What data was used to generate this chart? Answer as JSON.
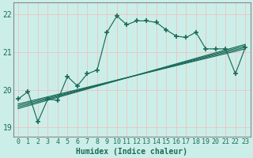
{
  "xlabel": "Humidex (Indice chaleur)",
  "ylabel": "",
  "background_color": "#cceee8",
  "grid_color": "#e8c8c8",
  "line_color": "#1a6b5a",
  "spine_color": "#888888",
  "xlim": [
    -0.5,
    23.5
  ],
  "ylim": [
    18.75,
    22.3
  ],
  "yticks": [
    19,
    20,
    21,
    22
  ],
  "xticks": [
    0,
    1,
    2,
    3,
    4,
    5,
    6,
    7,
    8,
    9,
    10,
    11,
    12,
    13,
    14,
    15,
    16,
    17,
    18,
    19,
    20,
    21,
    22,
    23
  ],
  "jagged_x": [
    0,
    1,
    2,
    3,
    4,
    5,
    6,
    7,
    8,
    9,
    10,
    11,
    12,
    13,
    14,
    15,
    16,
    17,
    18,
    19,
    20,
    21,
    22,
    23
  ],
  "jagged_y": [
    19.75,
    19.95,
    19.15,
    19.75,
    19.72,
    20.35,
    20.1,
    20.42,
    20.52,
    21.52,
    21.95,
    21.72,
    21.82,
    21.82,
    21.78,
    21.58,
    21.42,
    21.38,
    21.52,
    21.08,
    21.08,
    21.08,
    20.42,
    21.12
  ],
  "line1_x": [
    0,
    23
  ],
  "line1_y": [
    19.62,
    21.08
  ],
  "line2_x": [
    0,
    23
  ],
  "line2_y": [
    19.58,
    21.12
  ],
  "line3_x": [
    0,
    23
  ],
  "line3_y": [
    19.54,
    21.16
  ],
  "line4_x": [
    0,
    23
  ],
  "line4_y": [
    19.5,
    21.2
  ]
}
